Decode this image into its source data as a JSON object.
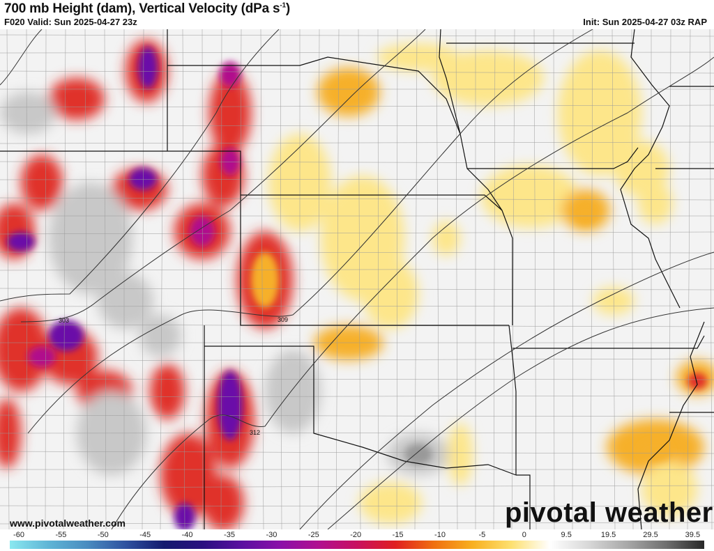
{
  "header": {
    "title": "700 mb Height (dam), Vertical Velocity (dPa s",
    "title_unit_sup": "-1",
    "title_close": ")",
    "valid": "F020 Valid: Sun 2025-04-27 23z",
    "init": "Init: Sun 2025-04-27 03z RAP"
  },
  "map": {
    "contour_labels": [
      "303",
      "309",
      "312"
    ],
    "contour_color": "#333333",
    "border_color": "#111111",
    "county_color": "#9a9a9a"
  },
  "watermark": {
    "url": "www.pivotalweather.com",
    "logo": "pivotal weather"
  },
  "colorbar": {
    "labels": [
      "-60",
      "-55",
      "-50",
      "-45",
      "-40",
      "-35",
      "-30",
      "-25",
      "-20",
      "-15",
      "-10",
      "-5",
      "0",
      "9.5",
      "19.5",
      "29.5",
      "39.5"
    ],
    "colors": [
      "#8ae8f0",
      "#5fb5d6",
      "#4a8cc0",
      "#2f52a0",
      "#141a6e",
      "#2a1080",
      "#5a10a0",
      "#8a10a8",
      "#b01090",
      "#c81060",
      "#e02020",
      "#f07010",
      "#f8b020",
      "#fde070",
      "#ffffff",
      "#d8d8d8",
      "#a8a8a8",
      "#707070",
      "#282828"
    ]
  }
}
